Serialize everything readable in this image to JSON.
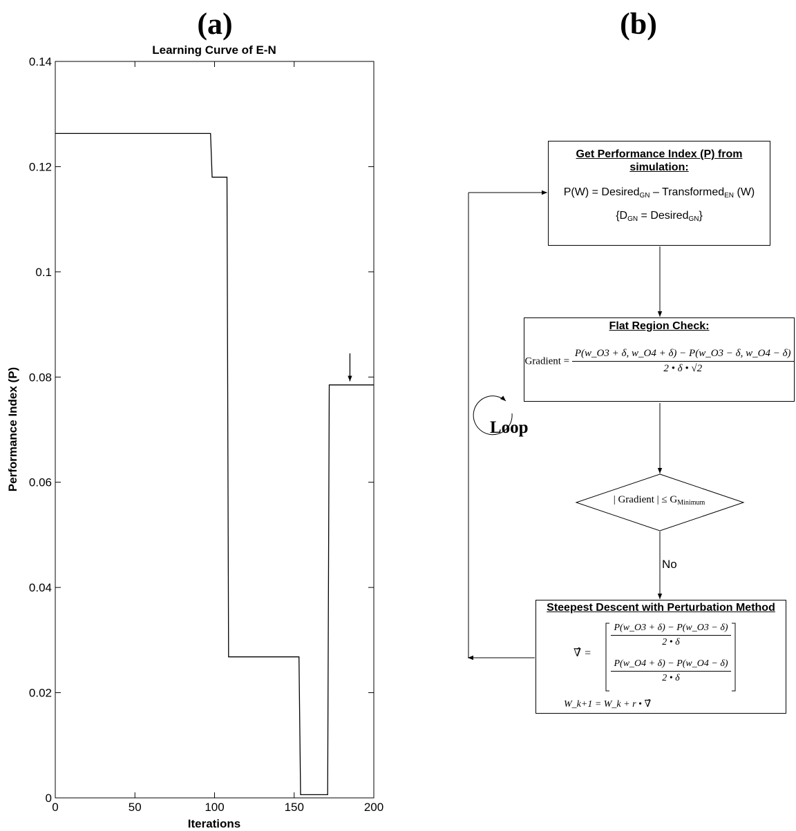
{
  "panels": {
    "a": "(a)",
    "b": "(b)"
  },
  "chart_data": {
    "type": "line",
    "title": "Learning Curve of E-N",
    "xlabel": "Iterations",
    "ylabel": "Performance Index (P)",
    "xlim": [
      0,
      200
    ],
    "ylim": [
      0,
      0.14
    ],
    "xticks": [
      0,
      50,
      100,
      150,
      200
    ],
    "xtick_labels": [
      "0",
      "50",
      "100",
      "150",
      "200"
    ],
    "yticks": [
      0,
      0.02,
      0.04,
      0.06,
      0.08,
      0.1,
      0.12,
      0.14
    ],
    "ytick_labels": [
      "0",
      "0.02",
      "0.04",
      "0.06",
      "0.08",
      "0.1",
      "0.12",
      "0.14"
    ],
    "grid": false,
    "line_color": "#000000",
    "series": [
      {
        "x": [
          0,
          97.5,
          98.5,
          107.8,
          108.8,
          153,
          154,
          171,
          172,
          200
        ],
        "y": [
          0.1263,
          0.1263,
          0.118,
          0.118,
          0.0268,
          0.0268,
          0.0006,
          0.0006,
          0.0785,
          0.0785
        ]
      }
    ],
    "annotations": [
      {
        "type": "arrow",
        "x": 185,
        "y_from": 0.0845,
        "y_to": 0.0792
      }
    ]
  },
  "flowchart": {
    "box1": {
      "title": "Get Performance Index (P) from simulation:",
      "eq": {
        "pre": "P(W) = Desired",
        "sub1": "GN",
        "mid": " – Transformed",
        "sub2": "EN",
        "post": " (W)"
      },
      "def": {
        "pre": "{D",
        "sub1": "GN",
        "mid": " = Desired",
        "sub2": "GN",
        "post": "}"
      }
    },
    "box2": {
      "title": "Flat Region Check:",
      "lhs": "Gradient = ",
      "numerator": "P(w_O3 + δ, w_O4 + δ) − P(w_O3 − δ, w_O4 − δ)",
      "denominator": "2 • δ • √2"
    },
    "decision": {
      "pre": "| Gradient |  ≤ G",
      "sub": "Minimum"
    },
    "no_label": "No",
    "box4": {
      "title": "Steepest Descent with Perturbation Method",
      "lhs": "∇̂ = ",
      "row1_num": "P(w_O3 + δ) − P(w_O3 − δ)",
      "row1_den": "2 • δ",
      "row2_num": "P(w_O4 + δ) − P(w_O4 − δ)",
      "row2_den": "2 • δ",
      "update": "W_k+1 = W_k + r • ∇̂"
    },
    "loop_label": "Loop"
  }
}
